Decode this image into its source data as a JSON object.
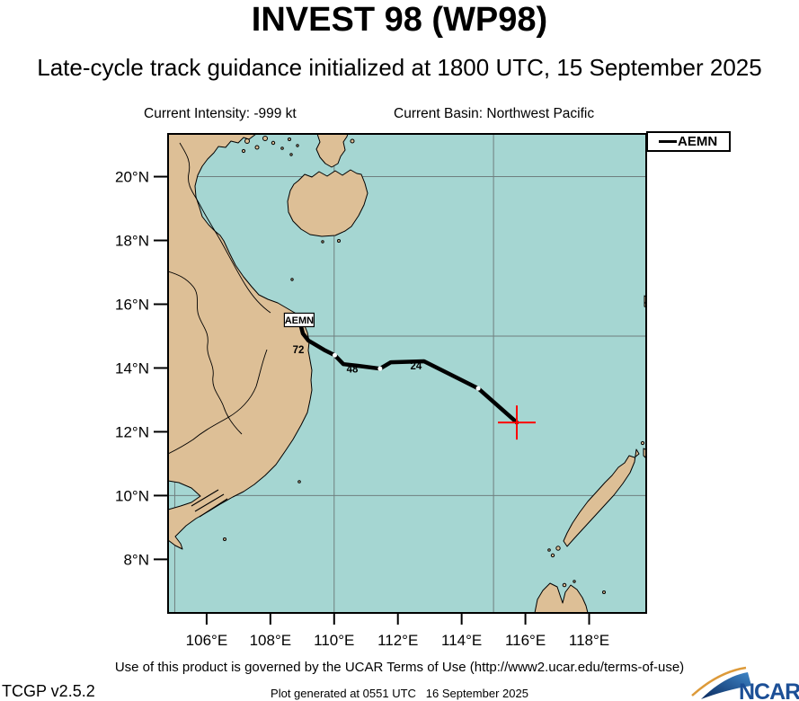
{
  "header": {
    "title": "INVEST 98 (WP98)",
    "subtitle": "Late-cycle track guidance initialized at 1800 UTC, 15 September 2025",
    "intensity_label": "Current Intensity: -999 kt",
    "basin_label": "Current Basin: Northwest Pacific"
  },
  "legend": {
    "entries": [
      {
        "label": "AEMN",
        "color": "#000000"
      }
    ]
  },
  "map": {
    "bounds": {
      "lon_min": 104.79,
      "lon_max": 119.79,
      "lat_min": 6.32,
      "lat_max": 21.34
    },
    "grid": {
      "lons": [
        105,
        110,
        115
      ],
      "lats": [
        10,
        15,
        20
      ]
    },
    "lat_ticks": [
      {
        "value": 20,
        "label": "20°N"
      },
      {
        "value": 18,
        "label": "18°N"
      },
      {
        "value": 16,
        "label": "16°N"
      },
      {
        "value": 14,
        "label": "14°N"
      },
      {
        "value": 12,
        "label": "12°N"
      },
      {
        "value": 10,
        "label": "10°N"
      },
      {
        "value": 8,
        "label": "8°N"
      }
    ],
    "lon_ticks": [
      {
        "value": 106,
        "label": "106°E"
      },
      {
        "value": 108,
        "label": "108°E"
      },
      {
        "value": 110,
        "label": "110°E"
      },
      {
        "value": 112,
        "label": "112°E"
      },
      {
        "value": 114,
        "label": "114°E"
      },
      {
        "value": 116,
        "label": "116°E"
      },
      {
        "value": 118,
        "label": "118°E"
      }
    ],
    "colors": {
      "sea": "#A5D6D2",
      "land": "#DDBF96",
      "grid": "#6F7F7F",
      "track": "#000000",
      "cross": "#FF0000"
    }
  },
  "track": {
    "model": "AEMN",
    "endpoint_label": "AEMN",
    "current_position": {
      "lon": 115.73,
      "lat": 12.29
    },
    "points": [
      {
        "lon": 115.73,
        "lat": 12.29
      },
      {
        "lon": 114.52,
        "lat": 13.36,
        "dot": true
      },
      {
        "lon": 112.82,
        "lat": 14.21
      },
      {
        "lon": 111.78,
        "lat": 14.18
      },
      {
        "lon": 111.44,
        "lat": 13.98,
        "dot": true
      },
      {
        "lon": 110.74,
        "lat": 14.07
      },
      {
        "lon": 110.29,
        "lat": 14.12
      },
      {
        "lon": 110.02,
        "lat": 14.4,
        "dot": true
      },
      {
        "lon": 109.72,
        "lat": 14.55
      },
      {
        "lon": 109.19,
        "lat": 14.86
      },
      {
        "lon": 109.02,
        "lat": 15.08
      },
      {
        "lon": 108.96,
        "lat": 15.31
      }
    ],
    "hour_labels": [
      {
        "text": "24",
        "lon": 112.57,
        "lat": 14.07
      },
      {
        "text": "48",
        "lon": 110.57,
        "lat": 13.97
      },
      {
        "text": "72",
        "lon": 108.88,
        "lat": 14.57
      }
    ]
  },
  "footer": {
    "terms": "Use of this product is governed by the UCAR Terms of Use (http://www2.ucar.edu/terms-of-use)",
    "generated": "Plot generated at 0551 UTC   16 September 2025",
    "version": "TCGP v2.5.2",
    "logo_text": "NCAR"
  }
}
